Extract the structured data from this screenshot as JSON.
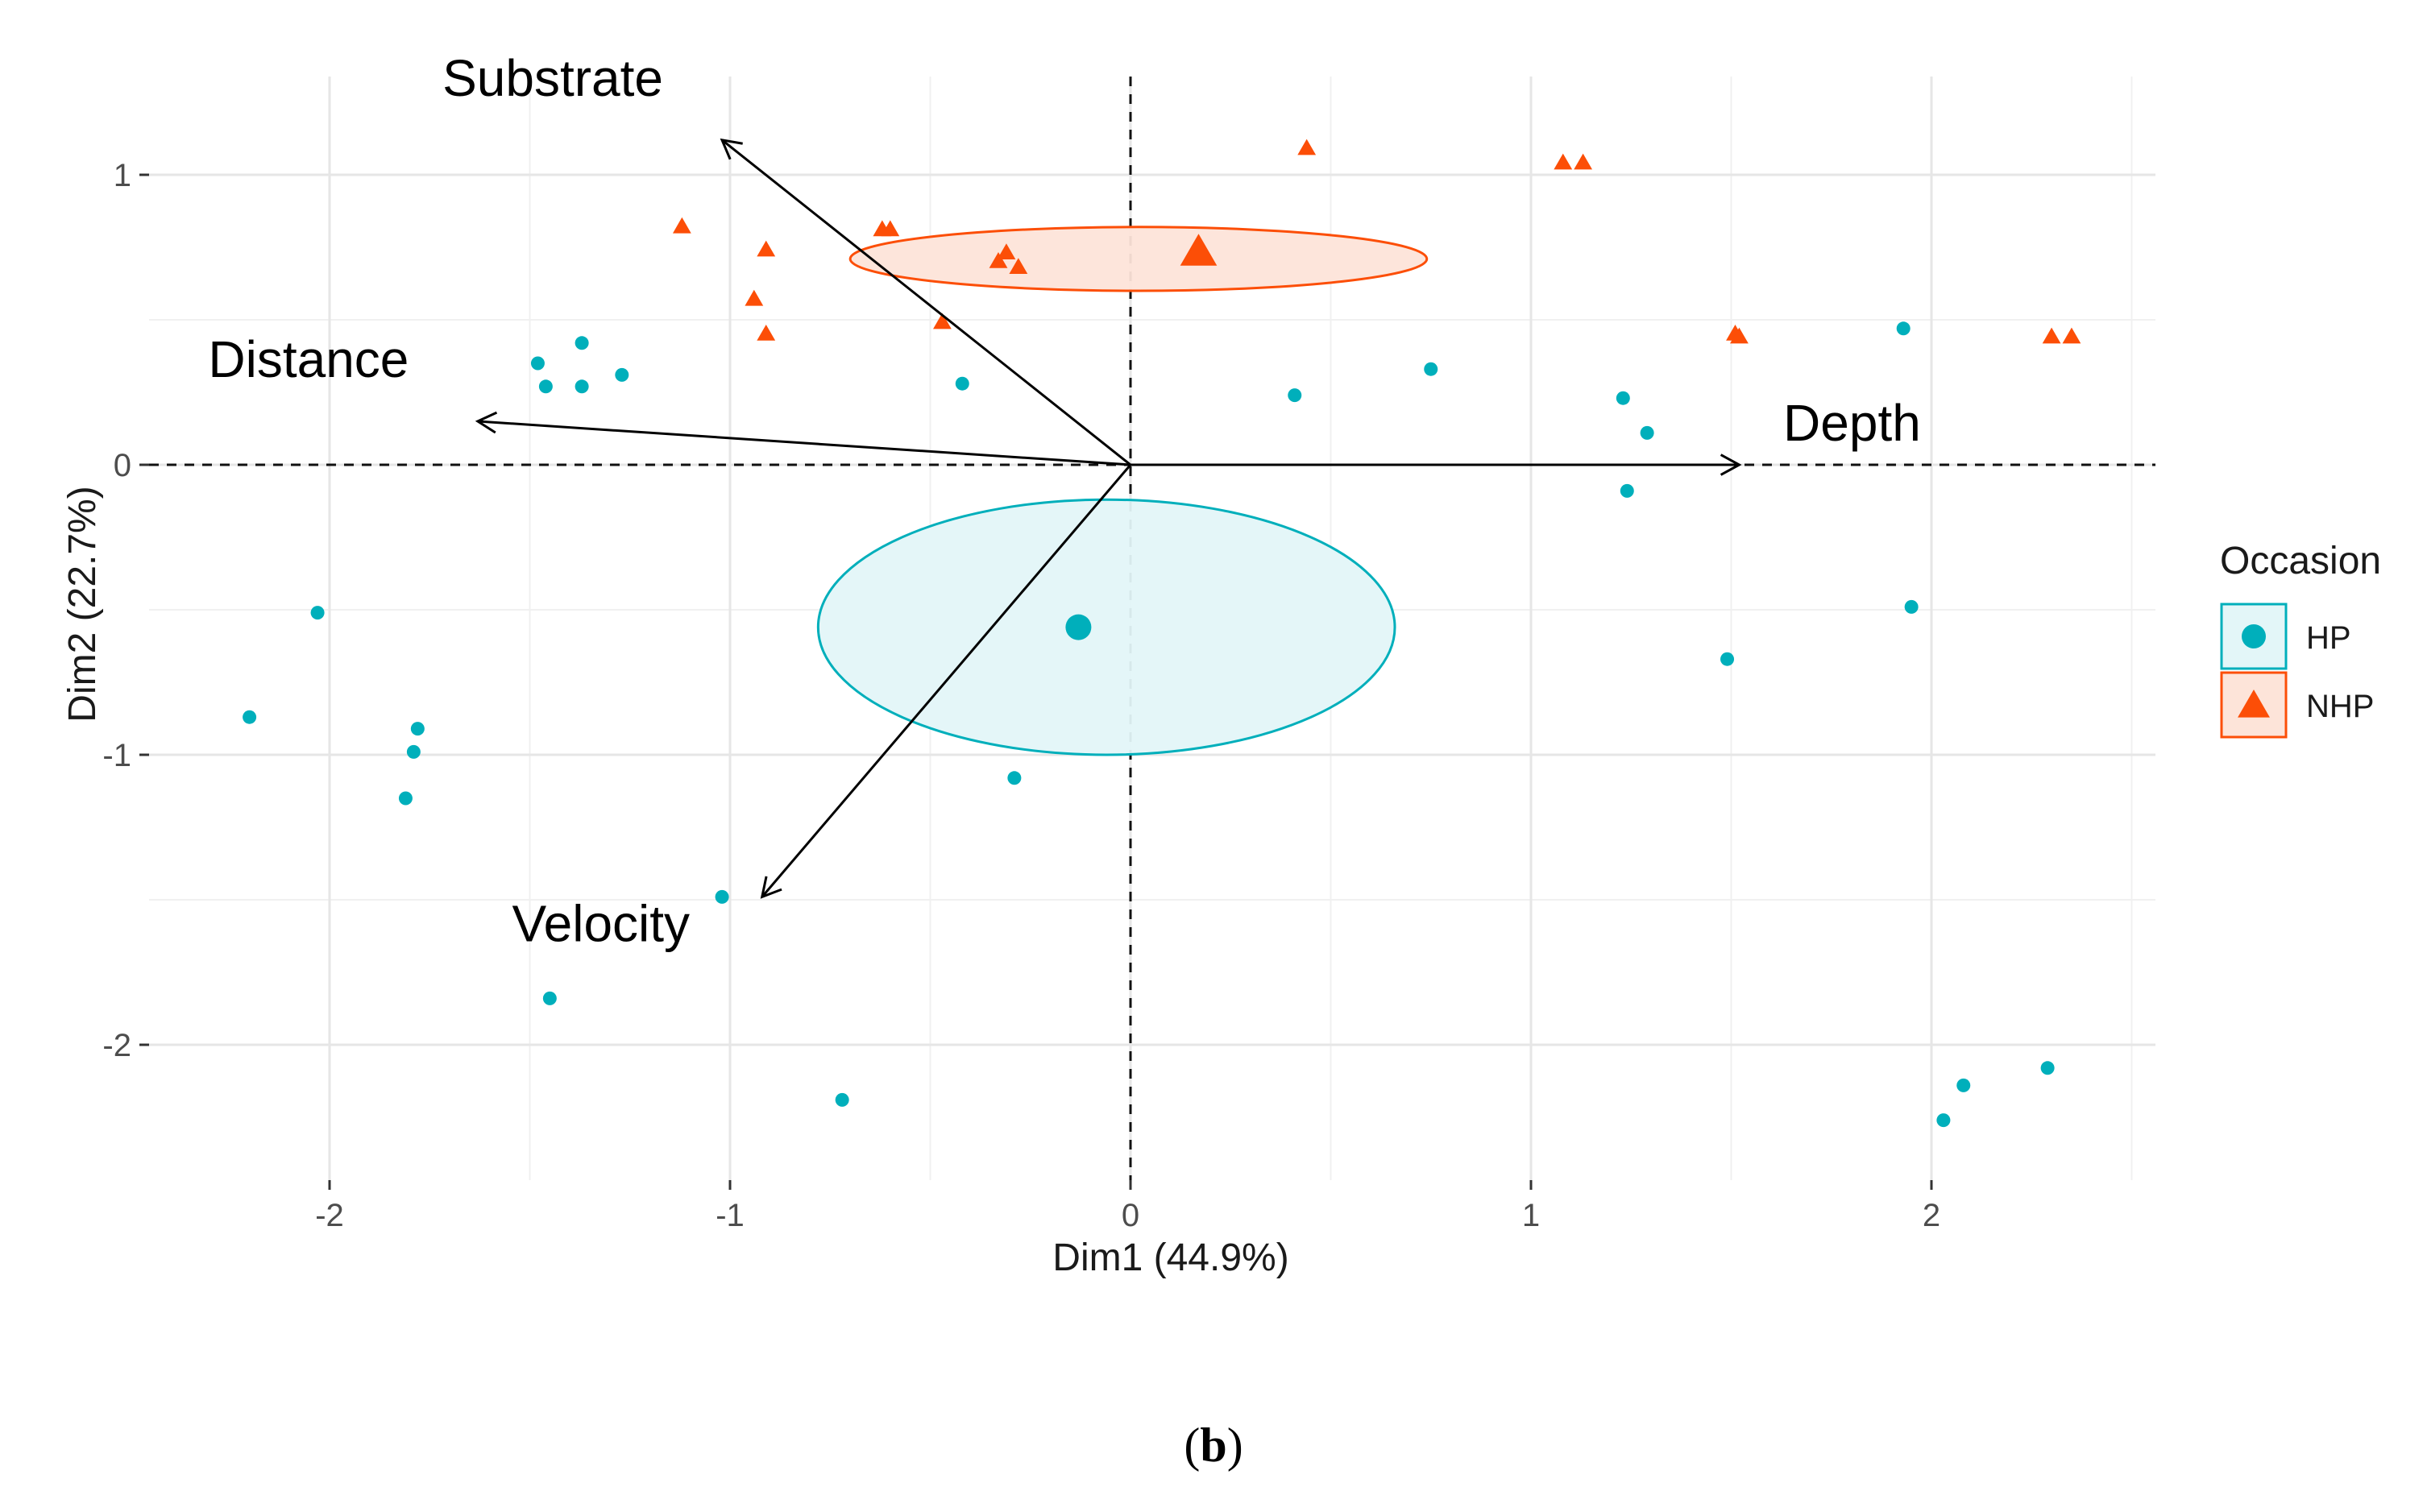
{
  "chart_data": {
    "type": "scatter",
    "subtype": "pca-biplot",
    "title": "",
    "xlabel": "Dim1 (44.9%)",
    "ylabel": "Dim2 (22.7%)",
    "xlim": [
      -2.5,
      2.5
    ],
    "ylim": [
      -2.45,
      1.25
    ],
    "x_ticks": [
      -2,
      -1,
      0,
      1,
      2
    ],
    "x_tick_labels": [
      "-2",
      "-1",
      "0",
      "1",
      "2"
    ],
    "y_ticks": [
      -2,
      -1,
      0,
      1
    ],
    "y_tick_labels": [
      "-2",
      "-1",
      "0",
      "1"
    ],
    "grid": true,
    "legend": {
      "title": "Occasion",
      "position": "right"
    },
    "series": [
      {
        "name": "HP",
        "marker": "circle",
        "color": "#00AFBB",
        "fill": "#E3F6F8",
        "points": [
          [
            -2.2,
            -0.87
          ],
          [
            -2.03,
            -0.51
          ],
          [
            -1.78,
            -0.91
          ],
          [
            -1.79,
            -0.99
          ],
          [
            -1.81,
            -1.15
          ],
          [
            -1.48,
            0.35
          ],
          [
            -1.46,
            0.27
          ],
          [
            -1.37,
            0.42
          ],
          [
            -1.37,
            0.27
          ],
          [
            -1.27,
            0.31
          ],
          [
            -1.45,
            -1.84
          ],
          [
            -1.02,
            -1.49
          ],
          [
            -0.72,
            -2.19
          ],
          [
            -0.42,
            0.28
          ],
          [
            -0.29,
            -1.08
          ],
          [
            0.41,
            0.24
          ],
          [
            0.75,
            0.33
          ],
          [
            1.23,
            0.23
          ],
          [
            1.29,
            0.11
          ],
          [
            1.24,
            -0.09
          ],
          [
            1.49,
            -0.67
          ],
          [
            1.93,
            0.47
          ],
          [
            1.95,
            -0.49
          ],
          [
            2.08,
            -2.14
          ],
          [
            2.03,
            -2.26
          ],
          [
            2.29,
            -2.08
          ]
        ],
        "centroid": [
          -0.13,
          -0.56
        ],
        "ellipse": {
          "center": [
            -0.06,
            -0.56
          ],
          "rx": 0.72,
          "ry": 0.44
        }
      },
      {
        "name": "NHP",
        "marker": "triangle",
        "color": "#FC4E07",
        "fill": "#FDE4D9",
        "points": [
          [
            -1.12,
            0.82
          ],
          [
            -0.62,
            0.81
          ],
          [
            -0.6,
            0.81
          ],
          [
            -0.91,
            0.74
          ],
          [
            -0.94,
            0.57
          ],
          [
            -0.91,
            0.45
          ],
          [
            -0.47,
            0.49
          ],
          [
            -0.33,
            0.7
          ],
          [
            -0.31,
            0.73
          ],
          [
            -0.28,
            0.68
          ],
          [
            0.44,
            1.09
          ],
          [
            1.08,
            1.04
          ],
          [
            1.13,
            1.04
          ],
          [
            1.51,
            0.45
          ],
          [
            1.52,
            0.44
          ],
          [
            2.3,
            0.44
          ],
          [
            2.35,
            0.44
          ]
        ],
        "centroid": [
          0.17,
          0.73
        ],
        "ellipse": {
          "center": [
            0.02,
            0.71
          ],
          "rx": 0.72,
          "ry": 0.11
        }
      }
    ],
    "arrows": [
      {
        "label": "Substrate",
        "x": -1.02,
        "y": 1.12
      },
      {
        "label": "Distance",
        "x": -1.63,
        "y": 0.15
      },
      {
        "label": "Depth",
        "x": 1.52,
        "y": 0.0
      },
      {
        "label": "Velocity",
        "x": -0.92,
        "y": -1.49
      }
    ],
    "caption": {
      "open": "(",
      "letter": "b",
      "close": ")"
    }
  }
}
